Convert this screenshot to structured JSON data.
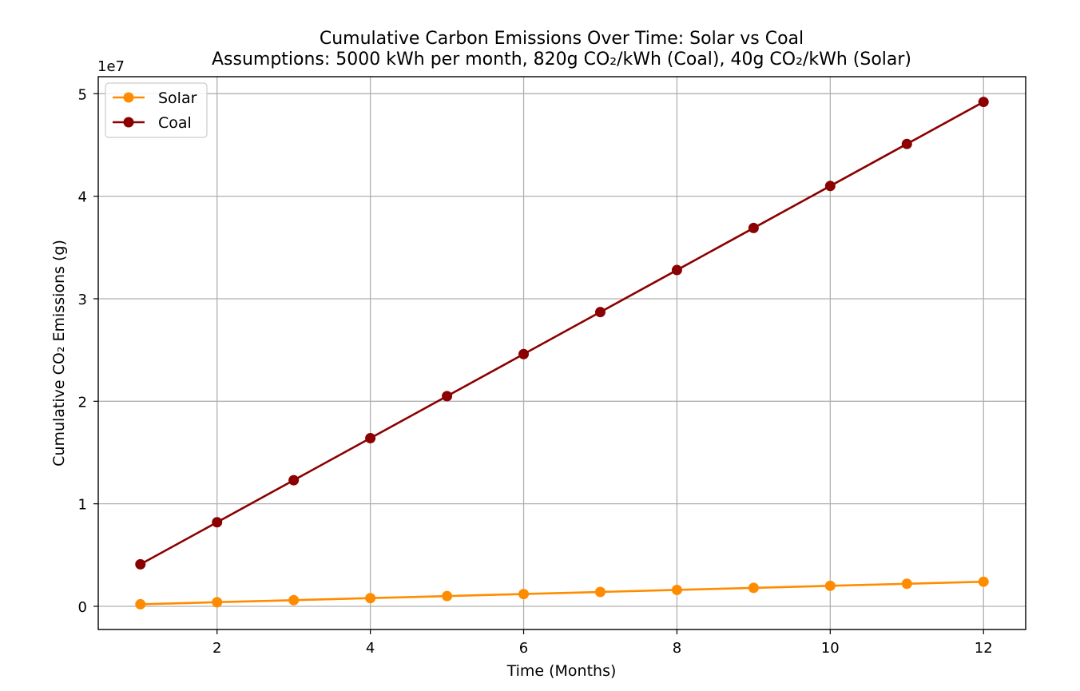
{
  "chart_data": {
    "type": "line",
    "title": "Cumulative Carbon Emissions Over Time: Solar vs Coal",
    "subtitle": "Assumptions: 5000 kWh per month, 820g CO₂/kWh (Coal), 40g CO₂/kWh (Solar)",
    "xlabel": "Time (Months)",
    "ylabel": "Cumulative CO₂ Emissions (g)",
    "y_offset_label": "1e7",
    "x": [
      1,
      2,
      3,
      4,
      5,
      6,
      7,
      8,
      9,
      10,
      11,
      12
    ],
    "series": [
      {
        "name": "Solar",
        "color": "#ff8c00",
        "marker": "circle",
        "values": [
          200000,
          400000,
          600000,
          800000,
          1000000,
          1200000,
          1400000,
          1600000,
          1800000,
          2000000,
          2200000,
          2400000
        ]
      },
      {
        "name": "Coal",
        "color": "#8b0000",
        "marker": "circle",
        "values": [
          4100000,
          8200000,
          12300000,
          16400000,
          20500000,
          24600000,
          28700000,
          32800000,
          36900000,
          41000000,
          45100000,
          49200000
        ]
      }
    ],
    "xticks": [
      2,
      4,
      6,
      8,
      10,
      12
    ],
    "yticks": [
      0,
      10000000,
      20000000,
      30000000,
      40000000,
      50000000
    ],
    "ytick_labels": [
      "0",
      "1",
      "2",
      "3",
      "4",
      "5"
    ],
    "xlim": [
      0.45,
      12.55
    ],
    "ylim": [
      -2260000,
      51660000
    ],
    "grid": true,
    "grid_color": "#b0b0b0",
    "legend_position": "upper-left"
  }
}
